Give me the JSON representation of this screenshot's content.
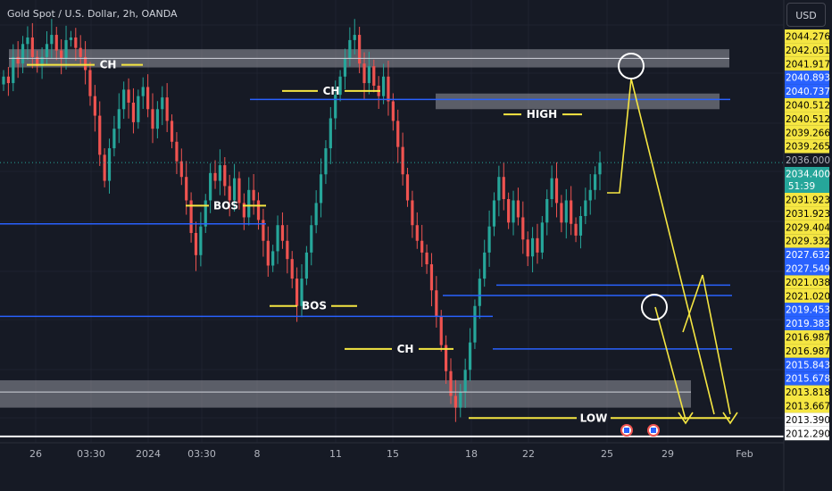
{
  "header": {
    "symbol_text": "Gold Spot / U.S. Dollar, 2h, OANDA",
    "currency_button": "USD"
  },
  "chart_data": {
    "type": "candlestick",
    "instrument": "Gold Spot / U.S. Dollar",
    "interval": "2h",
    "source": "OANDA",
    "ylim": [
      2012.3,
      2045.3
    ],
    "x_ticks": [
      "26",
      "03:30",
      "2024",
      "03:30",
      "8",
      "11",
      "15",
      "18",
      "22",
      "25",
      "29",
      "Feb"
    ],
    "price_scale_labels": [
      {
        "value": "2044.276",
        "style": "yellow"
      },
      {
        "value": "2042.051",
        "style": "yellow"
      },
      {
        "value": "2041.917",
        "style": "yellow"
      },
      {
        "value": "2040.893",
        "style": "blue"
      },
      {
        "value": "2040.737",
        "style": "blue"
      },
      {
        "value": "2040.512",
        "style": "yellow"
      },
      {
        "value": "2040.512",
        "style": "yellow"
      },
      {
        "value": "2039.266",
        "style": "yellow"
      },
      {
        "value": "2039.265",
        "style": "yellow"
      },
      {
        "value": "2036.000",
        "style": "plain"
      },
      {
        "value": "2034.400",
        "style": "green",
        "sub": "51:39"
      },
      {
        "value": "2031.923",
        "style": "yellow"
      },
      {
        "value": "2031.923",
        "style": "yellow"
      },
      {
        "value": "2029.404",
        "style": "yellow"
      },
      {
        "value": "2029.332",
        "style": "yellow"
      },
      {
        "value": "2027.632",
        "style": "blue"
      },
      {
        "value": "2027.549",
        "style": "blue"
      },
      {
        "value": "2021.038",
        "style": "yellow"
      },
      {
        "value": "2021.020",
        "style": "yellow"
      },
      {
        "value": "2019.453",
        "style": "blue"
      },
      {
        "value": "2019.383",
        "style": "blue"
      },
      {
        "value": "2016.987",
        "style": "yellow"
      },
      {
        "value": "2016.987",
        "style": "yellow"
      },
      {
        "value": "2015.843",
        "style": "blue"
      },
      {
        "value": "2015.678",
        "style": "blue"
      },
      {
        "value": "2013.818",
        "style": "yellow"
      },
      {
        "value": "2013.667",
        "style": "yellow"
      },
      {
        "value": "2013.390",
        "style": "white"
      },
      {
        "value": "2012.290",
        "style": "white"
      }
    ],
    "annotations": [
      "CH",
      "CH",
      "CH",
      "BOS",
      "BOS",
      "HIGH",
      "LOW"
    ],
    "colors": {
      "up": "#26a69a",
      "down": "#ef5350",
      "bg": "#161a25",
      "annotation": "#f5e642",
      "level": "#2962ff",
      "zone": "#9598a1"
    }
  }
}
